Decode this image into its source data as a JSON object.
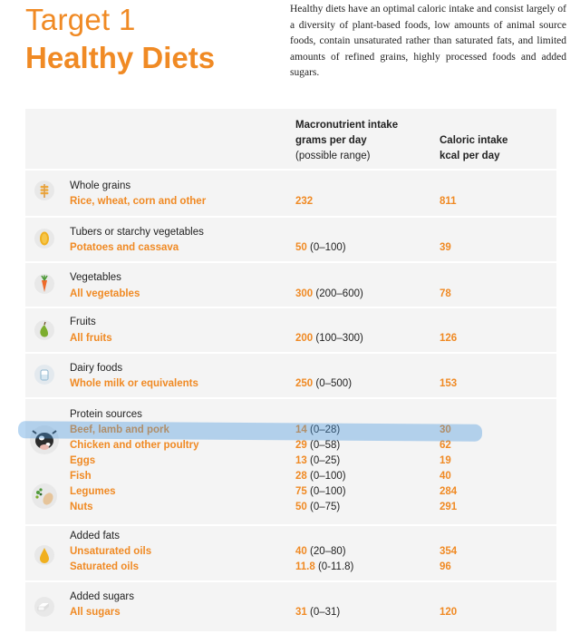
{
  "title": {
    "line1": "Target 1",
    "line2": "Healthy Diets"
  },
  "intro": "Healthy diets have an optimal caloric intake and consist largely of a diversity of plant-based foods, low amounts of animal source foods, contain unsaturated rather than saturated fats, and limited amounts of refined grains, highly processed foods and added sugars.",
  "colors": {
    "accent": "#f08a24",
    "panel": "#f4f4f4",
    "highlight": "#4696dc"
  },
  "headers": {
    "macro_l1": "Macronutrient intake",
    "macro_l2": "grams per day",
    "macro_l3": "(possible range)",
    "cal_l1": "Caloric intake",
    "cal_l2": "kcal per day"
  },
  "groups": [
    {
      "category": "Whole grains",
      "icon": "wheat-icon",
      "items": [
        {
          "name": "Rice, wheat, corn and other",
          "grams": "232",
          "range": "",
          "kcal": "811"
        }
      ]
    },
    {
      "category": "Tubers or starchy vegetables",
      "icon": "potato-icon",
      "items": [
        {
          "name": "Potatoes and cassava",
          "grams": "50",
          "range": "(0–100)",
          "kcal": "39"
        }
      ]
    },
    {
      "category": "Vegetables",
      "icon": "carrot-icon",
      "items": [
        {
          "name": "All vegetables",
          "grams": "300",
          "range": "(200–600)",
          "kcal": "78"
        }
      ]
    },
    {
      "category": "Fruits",
      "icon": "pear-icon",
      "items": [
        {
          "name": "All fruits",
          "grams": "200",
          "range": "(100–300)",
          "kcal": "126"
        }
      ]
    },
    {
      "category": "Dairy foods",
      "icon": "milk-icon",
      "items": [
        {
          "name": "Whole milk or equivalents",
          "grams": "250",
          "range": "(0–500)",
          "kcal": "153"
        }
      ]
    },
    {
      "category": "Protein sources",
      "icon": "cow-icon",
      "items": [
        {
          "name": "Beef, lamb and pork",
          "grams": "14",
          "range": "(0–28)",
          "kcal": "30"
        },
        {
          "name": "Chicken and other poultry",
          "grams": "29",
          "range": "(0–58)",
          "kcal": "62"
        },
        {
          "name": "Eggs",
          "grams": "13",
          "range": "(0–25)",
          "kcal": "19"
        },
        {
          "name": "Fish",
          "grams": "28",
          "range": "(0–100)",
          "kcal": "40"
        },
        {
          "name": "Legumes",
          "grams": "75",
          "range": "(0–100)",
          "kcal": "284"
        },
        {
          "name": "Nuts",
          "grams": "50",
          "range": "(0–75)",
          "kcal": "291"
        }
      ]
    },
    {
      "category": "Added fats",
      "icon": "oil-drop-icon",
      "items": [
        {
          "name": "Unsaturated oils",
          "grams": "40",
          "range": "(20–80)",
          "kcal": "354"
        },
        {
          "name": "Saturated oils",
          "grams": "11.8",
          "range": "(0-11.8)",
          "kcal": "96"
        }
      ]
    },
    {
      "category": "Added sugars",
      "icon": "sugar-cube-icon",
      "items": [
        {
          "name": "All sugars",
          "grams": "31",
          "range": "(0–31)",
          "kcal": "120"
        }
      ]
    }
  ]
}
